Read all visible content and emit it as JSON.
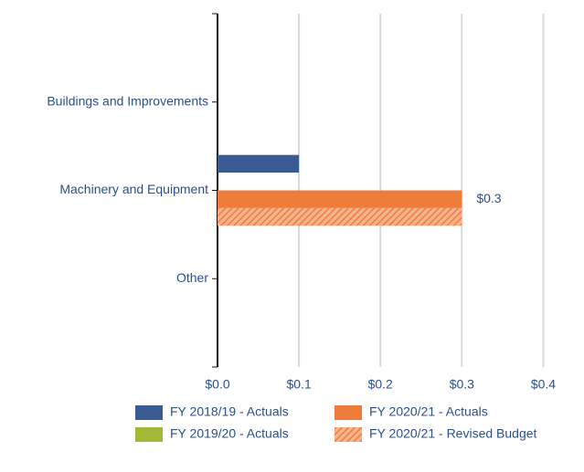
{
  "chart_data": {
    "type": "hbar",
    "categories": [
      "Buildings and Improvements",
      "Machinery and Equipment",
      "Other"
    ],
    "series": [
      {
        "name": "FY 2018/19 - Actuals",
        "color": "#3a5a92",
        "values": [
          null,
          0.1,
          null
        ]
      },
      {
        "name": "FY 2019/20 - Actuals",
        "color": "#a5b83a",
        "values": [
          null,
          null,
          null
        ]
      },
      {
        "name": "FY 2020/21 - Actuals",
        "color": "#f07c3c",
        "values": [
          null,
          0.3,
          null
        ],
        "value_labels": [
          null,
          "$0.3",
          null
        ]
      },
      {
        "name": "FY 2020/21 - Revised Budget",
        "color": "#f07c3c",
        "hatch": true,
        "values": [
          null,
          0.3,
          null
        ]
      }
    ],
    "xlim": [
      0,
      0.45
    ],
    "xticks": [
      {
        "value": 0,
        "label": "$0.0"
      },
      {
        "value": 0.1,
        "label": "$0.1"
      },
      {
        "value": 0.2,
        "label": "$0.2"
      },
      {
        "value": 0.3,
        "label": "$0.3"
      },
      {
        "value": 0.4,
        "label": "$0.4"
      }
    ],
    "grid": true,
    "legend": "bottom"
  }
}
